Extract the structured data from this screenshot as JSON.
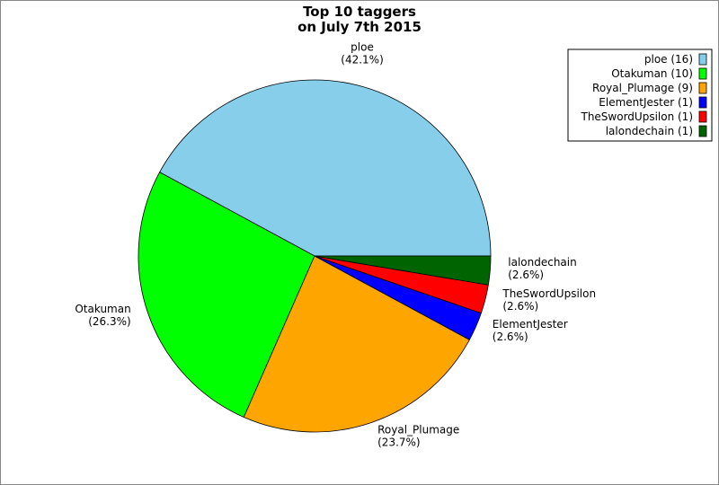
{
  "chart_data": {
    "type": "pie",
    "title": "Top 10 taggers",
    "subtitle": "on July 7th 2015",
    "categories": [
      "ploe",
      "Otakuman",
      "Royal_Plumage",
      "ElementJester",
      "TheSwordUpsilon",
      "lalondechain"
    ],
    "values": [
      16,
      10,
      9,
      1,
      1,
      1
    ],
    "value_labels": [
      "(42.1%)",
      "(26.3%)",
      "(23.7%)",
      "(2.6%)",
      "(2.6%)",
      "(2.6%)"
    ],
    "legend_labels": [
      "ploe (16)",
      "Otakuman (10)",
      "Royal_Plumage (9)",
      "ElementJester (1)",
      "TheSwordUpsilon (1)",
      "lalondechain (1)"
    ],
    "colors": [
      "#87ceeb",
      "#00ff00",
      "#ffa500",
      "#0000ff",
      "#ff0000",
      "#006400"
    ],
    "legend": "upper right"
  }
}
